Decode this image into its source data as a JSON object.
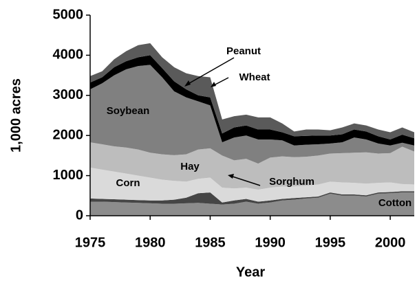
{
  "chart_data": {
    "type": "stacked_area",
    "x_label": "Year",
    "y_label": "1,000 acres",
    "x": [
      1975,
      1976,
      1977,
      1978,
      1979,
      1980,
      1981,
      1982,
      1983,
      1984,
      1985,
      1986,
      1987,
      1988,
      1989,
      1990,
      1991,
      1992,
      1993,
      1994,
      1995,
      1996,
      1997,
      1998,
      1999,
      2000,
      2001,
      2002
    ],
    "xlim": [
      1975,
      2002
    ],
    "xticks": [
      1975,
      1980,
      1985,
      1990,
      1995,
      2000
    ],
    "ylim": [
      0,
      5000
    ],
    "yticks": [
      0,
      1000,
      2000,
      3000,
      4000,
      5000
    ],
    "series": [
      {
        "name": "Cotton",
        "color": "#8c8c8c",
        "values": [
          350,
          350,
          340,
          330,
          320,
          310,
          300,
          300,
          310,
          320,
          300,
          280,
          300,
          350,
          300,
          330,
          380,
          400,
          430,
          450,
          550,
          500,
          500,
          480,
          550,
          560,
          580,
          580
        ]
      },
      {
        "name": "Sorghum",
        "color": "#454545",
        "values": [
          80,
          70,
          70,
          70,
          70,
          70,
          80,
          100,
          140,
          240,
          280,
          50,
          80,
          70,
          50,
          50,
          40,
          40,
          30,
          30,
          30,
          30,
          30,
          30,
          30,
          30,
          30,
          30
        ]
      },
      {
        "name": "Corn",
        "color": "#dadada",
        "values": [
          770,
          730,
          690,
          650,
          610,
          570,
          520,
          470,
          400,
          360,
          370,
          370,
          300,
          280,
          300,
          320,
          310,
          290,
          290,
          300,
          270,
          300,
          290,
          290,
          240,
          240,
          180,
          170
        ]
      },
      {
        "name": "Hay",
        "color": "#bdbdbd",
        "values": [
          630,
          630,
          630,
          650,
          650,
          620,
          630,
          640,
          680,
          730,
          730,
          800,
          700,
          720,
          650,
          750,
          750,
          730,
          720,
          720,
          700,
          730,
          750,
          780,
          730,
          730,
          930,
          820
        ]
      },
      {
        "name": "Soybean",
        "color": "#808080",
        "values": [
          1320,
          1520,
          1770,
          1950,
          2080,
          2190,
          1920,
          1590,
          1420,
          1200,
          1070,
          330,
          570,
          580,
          600,
          450,
          400,
          290,
          300,
          280,
          250,
          270,
          380,
          320,
          250,
          190,
          100,
          150
        ]
      },
      {
        "name": "Peanut",
        "color": "#000000",
        "values": [
          170,
          150,
          200,
          200,
          220,
          240,
          230,
          250,
          200,
          150,
          200,
          220,
          250,
          250,
          250,
          250,
          200,
          230,
          220,
          220,
          200,
          200,
          200,
          200,
          180,
          150,
          200,
          180
        ]
      },
      {
        "name": "Wheat",
        "color": "#5a5a5a",
        "values": [
          160,
          150,
          200,
          250,
          300,
          300,
          270,
          350,
          400,
          480,
          500,
          350,
          280,
          270,
          300,
          300,
          220,
          120,
          160,
          150,
          130,
          170,
          150,
          150,
          170,
          180,
          180,
          150
        ]
      }
    ]
  }
}
